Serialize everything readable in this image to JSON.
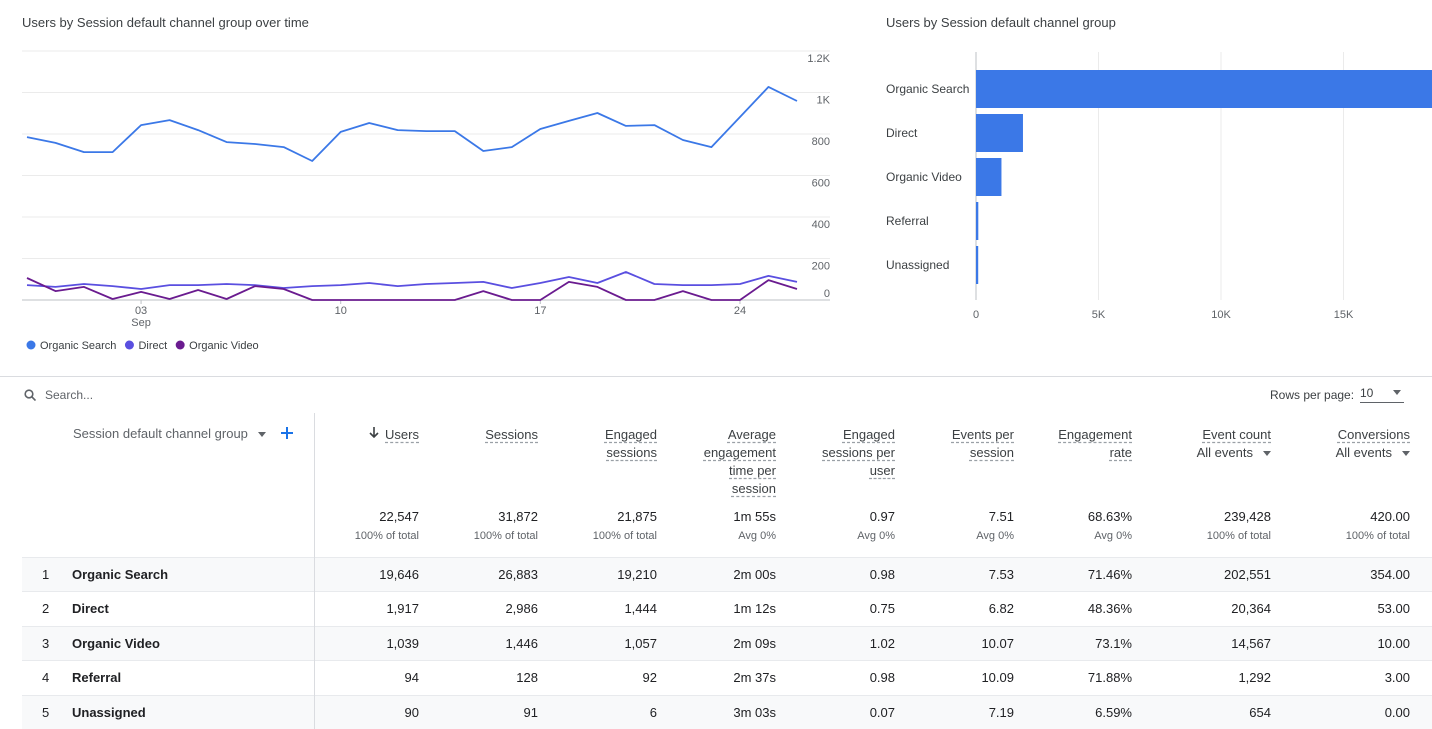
{
  "chart_data": [
    {
      "type": "line",
      "title": "Users by Session default channel group over time",
      "categories": [
        null,
        null,
        null,
        null,
        "03 Sep",
        null,
        null,
        null,
        null,
        null,
        null,
        "10",
        null,
        null,
        null,
        null,
        null,
        null,
        "17",
        null,
        null,
        null,
        null,
        null,
        null,
        "24",
        null,
        null
      ],
      "series": [
        {
          "name": "Organic Search",
          "color": "#3b78e7",
          "values": [
            785,
            757,
            713,
            713,
            843,
            867,
            819,
            761,
            752,
            737,
            670,
            810,
            853,
            819,
            814,
            814,
            718,
            737,
            824,
            863,
            901,
            839,
            843,
            771,
            737,
            882,
            1027,
            959
          ]
        },
        {
          "name": "Direct",
          "color": "#5a4fe0",
          "values": [
            72,
            63,
            77,
            67,
            53,
            72,
            72,
            77,
            72,
            58,
            67,
            72,
            82,
            67,
            77,
            82,
            87,
            58,
            82,
            111,
            82,
            135,
            77,
            72,
            72,
            77,
            116,
            87
          ]
        },
        {
          "name": "Organic Video",
          "color": "#6a1b8f",
          "values": [
            106,
            43,
            63,
            5,
            39,
            5,
            48,
            5,
            67,
            53,
            0,
            0,
            0,
            0,
            0,
            0,
            43,
            0,
            0,
            87,
            63,
            0,
            0,
            43,
            0,
            0,
            96,
            53
          ]
        }
      ],
      "ylim": [
        0,
        1200
      ],
      "yticks": [
        0,
        200,
        400,
        600,
        800,
        {
          "value": 1000,
          "label": "1K"
        },
        {
          "value": 1200,
          "label": "1.2K"
        }
      ],
      "grid": true,
      "legend": "bottom"
    },
    {
      "type": "bar",
      "title": "Users by Session default channel group",
      "categories": [
        "Organic Search",
        "Direct",
        "Organic Video",
        "Referral",
        "Unassigned"
      ],
      "values": [
        19646,
        1917,
        1039,
        94,
        90
      ],
      "color": "#3b78e7",
      "xlim": [
        0,
        20000
      ],
      "xticks": [
        0,
        {
          "value": 5000,
          "label": "5K"
        },
        {
          "value": 10000,
          "label": "10K"
        },
        {
          "value": 15000,
          "label": "15K"
        }
      ],
      "grid": true
    }
  ],
  "search": {
    "placeholder": "Search...",
    "rows_per_page_label": "Rows per page:",
    "rows_per_page": "10"
  },
  "table": {
    "columns": [
      {
        "label": "Session default channel group"
      },
      {
        "label": "Users"
      },
      {
        "label": "Sessions"
      },
      {
        "label": "Engaged sessions"
      },
      {
        "label": "Average engagement time per session"
      },
      {
        "label": "Engaged sessions per user"
      },
      {
        "label": "Events per session"
      },
      {
        "label": "Engagement rate"
      },
      {
        "label": "Event count",
        "sub": "All events"
      },
      {
        "label": "Conversions",
        "sub": "All events"
      }
    ],
    "totals": [
      {
        "value": "22,547",
        "note": "100% of total"
      },
      {
        "value": "31,872",
        "note": "100% of total"
      },
      {
        "value": "21,875",
        "note": "100% of total"
      },
      {
        "value": "1m 55s",
        "note": "Avg 0%"
      },
      {
        "value": "0.97",
        "note": "Avg 0%"
      },
      {
        "value": "7.51",
        "note": "Avg 0%"
      },
      {
        "value": "68.63%",
        "note": "Avg 0%"
      },
      {
        "value": "239,428",
        "note": "100% of total"
      },
      {
        "value": "420.00",
        "note": "100% of total"
      }
    ],
    "rows": [
      [
        "1",
        "Organic Search",
        "19,646",
        "26,883",
        "19,210",
        "2m 00s",
        "0.98",
        "7.53",
        "71.46%",
        "202,551",
        "354.00"
      ],
      [
        "2",
        "Direct",
        "1,917",
        "2,986",
        "1,444",
        "1m 12s",
        "0.75",
        "6.82",
        "48.36%",
        "20,364",
        "53.00"
      ],
      [
        "3",
        "Organic Video",
        "1,039",
        "1,446",
        "1,057",
        "2m 09s",
        "1.02",
        "10.07",
        "73.1%",
        "14,567",
        "10.00"
      ],
      [
        "4",
        "Referral",
        "94",
        "128",
        "92",
        "2m 37s",
        "0.98",
        "10.09",
        "71.88%",
        "1,292",
        "3.00"
      ],
      [
        "5",
        "Unassigned",
        "90",
        "91",
        "6",
        "3m 03s",
        "0.07",
        "7.19",
        "6.59%",
        "654",
        "0.00"
      ]
    ]
  }
}
